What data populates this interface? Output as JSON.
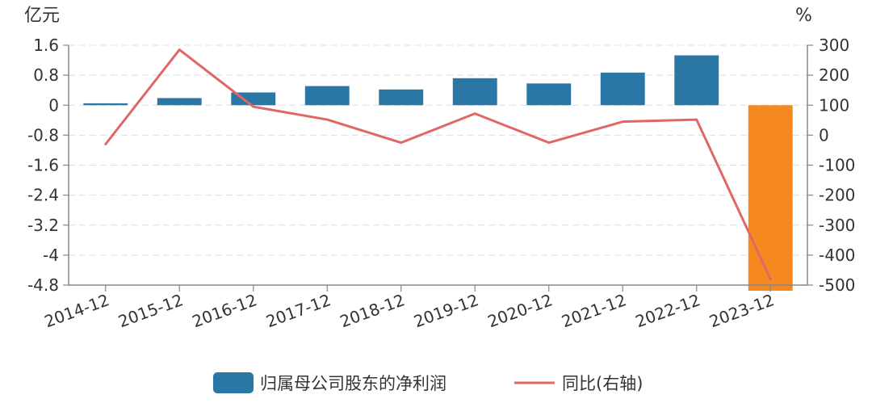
{
  "chart_data": {
    "type": "bar",
    "categories": [
      "2014-12",
      "2015-12",
      "2016-12",
      "2017-12",
      "2018-12",
      "2019-12",
      "2020-12",
      "2021-12",
      "2022-12",
      "2023-12"
    ],
    "series": [
      {
        "name": "归属母公司股东的净利润",
        "type": "bar",
        "axis": "left",
        "values": [
          0.05,
          0.19,
          0.34,
          0.51,
          0.42,
          0.72,
          0.58,
          0.87,
          1.33,
          -4.95
        ],
        "color": "#2a77a6",
        "highlight_color": "#f5891f",
        "highlight_index": 9
      },
      {
        "name": "同比(右轴)",
        "type": "line",
        "axis": "right",
        "values": [
          -30,
          285,
          95,
          52,
          -25,
          72,
          -25,
          45,
          52,
          -480
        ],
        "color": "#e06766"
      }
    ],
    "left_unit": "亿元",
    "right_unit": "%",
    "left_ticks": [
      1.6,
      0.8,
      0,
      -0.8,
      -1.6,
      -2.4,
      -3.2,
      -4,
      -4.8
    ],
    "left_tick_labels": [
      "1.6",
      "0.8",
      "0",
      "-0.8",
      "-1.6",
      "-2.4",
      "-3.2",
      "-4",
      "-4.8"
    ],
    "right_ticks": [
      300,
      200,
      100,
      0,
      -100,
      -200,
      -300,
      -400,
      -500
    ],
    "right_tick_labels": [
      "300",
      "200",
      "100",
      "0",
      "-100",
      "-200",
      "-300",
      "-400",
      "-500"
    ],
    "ylim_left": [
      -4.8,
      1.6
    ],
    "ylim_right": [
      -500,
      300
    ],
    "grid": true,
    "legend_position": "bottom"
  }
}
